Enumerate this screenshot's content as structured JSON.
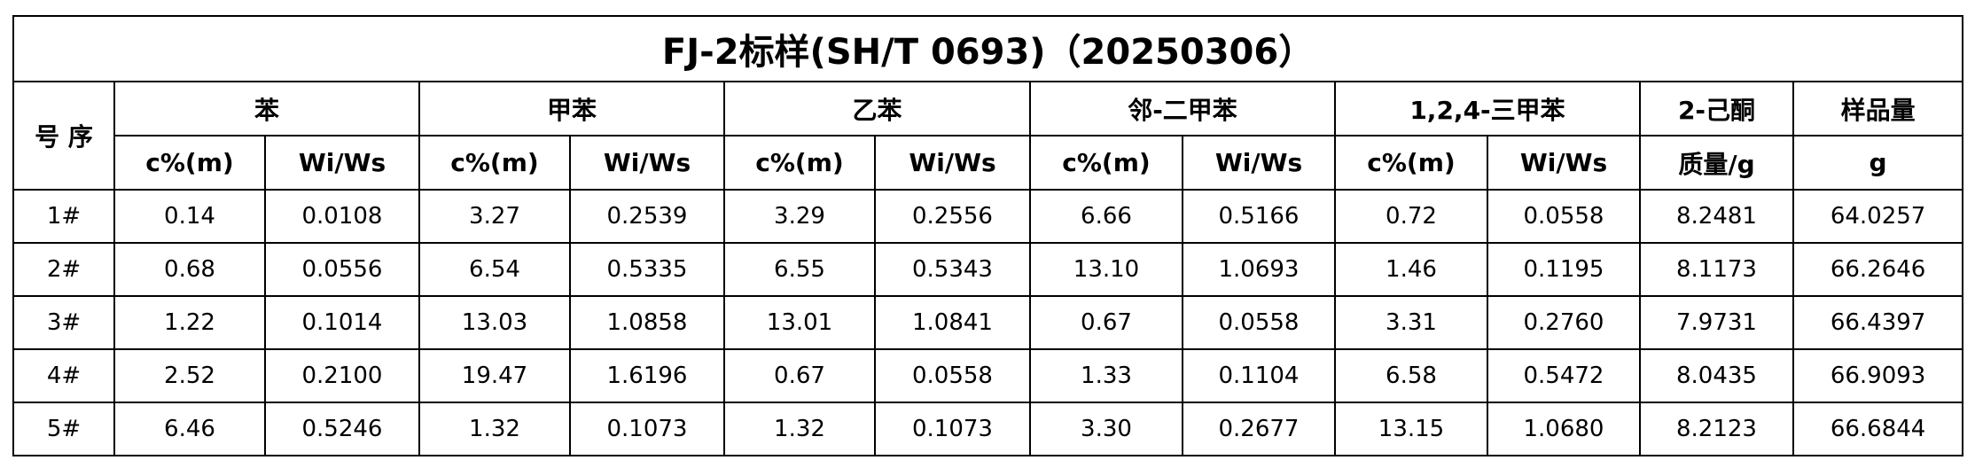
{
  "title": "FJ-2标样(SH/T 0693)（20250306）",
  "header": {
    "row_label": "号 序",
    "groups": [
      "苯",
      "甲苯",
      "乙苯",
      "邻-二甲苯",
      "1,2,4-三甲苯"
    ],
    "extra": [
      "2-己酮",
      "样品量"
    ],
    "subheaders": [
      "c%(m)",
      "Wi/Ws",
      "c%(m)",
      "Wi/Ws",
      "c%(m)",
      "Wi/Ws",
      "c%(m)",
      "Wi/Ws",
      "c%(m)",
      "Wi/Ws",
      "质量/g",
      "g"
    ]
  },
  "rows": [
    [
      "1#",
      "0.14",
      "0.0108",
      "3.27",
      "0.2539",
      "3.29",
      "0.2556",
      "6.66",
      "0.5166",
      "0.72",
      "0.0558",
      "8.2481",
      "64.0257"
    ],
    [
      "2#",
      "0.68",
      "0.0556",
      "6.54",
      "0.5335",
      "6.55",
      "0.5343",
      "13.10",
      "1.0693",
      "1.46",
      "0.1195",
      "8.1173",
      "66.2646"
    ],
    [
      "3#",
      "1.22",
      "0.1014",
      "13.03",
      "1.0858",
      "13.01",
      "1.0841",
      "0.67",
      "0.0558",
      "3.31",
      "0.2760",
      "7.9731",
      "66.4397"
    ],
    [
      "4#",
      "2.52",
      "0.2100",
      "19.47",
      "1.6196",
      "0.67",
      "0.0558",
      "1.33",
      "0.1104",
      "6.58",
      "0.5472",
      "8.0435",
      "66.9093"
    ],
    [
      "5#",
      "6.46",
      "0.5246",
      "1.32",
      "0.1073",
      "1.32",
      "0.1073",
      "3.30",
      "0.2677",
      "13.15",
      "1.0680",
      "8.2123",
      "66.6844"
    ]
  ]
}
